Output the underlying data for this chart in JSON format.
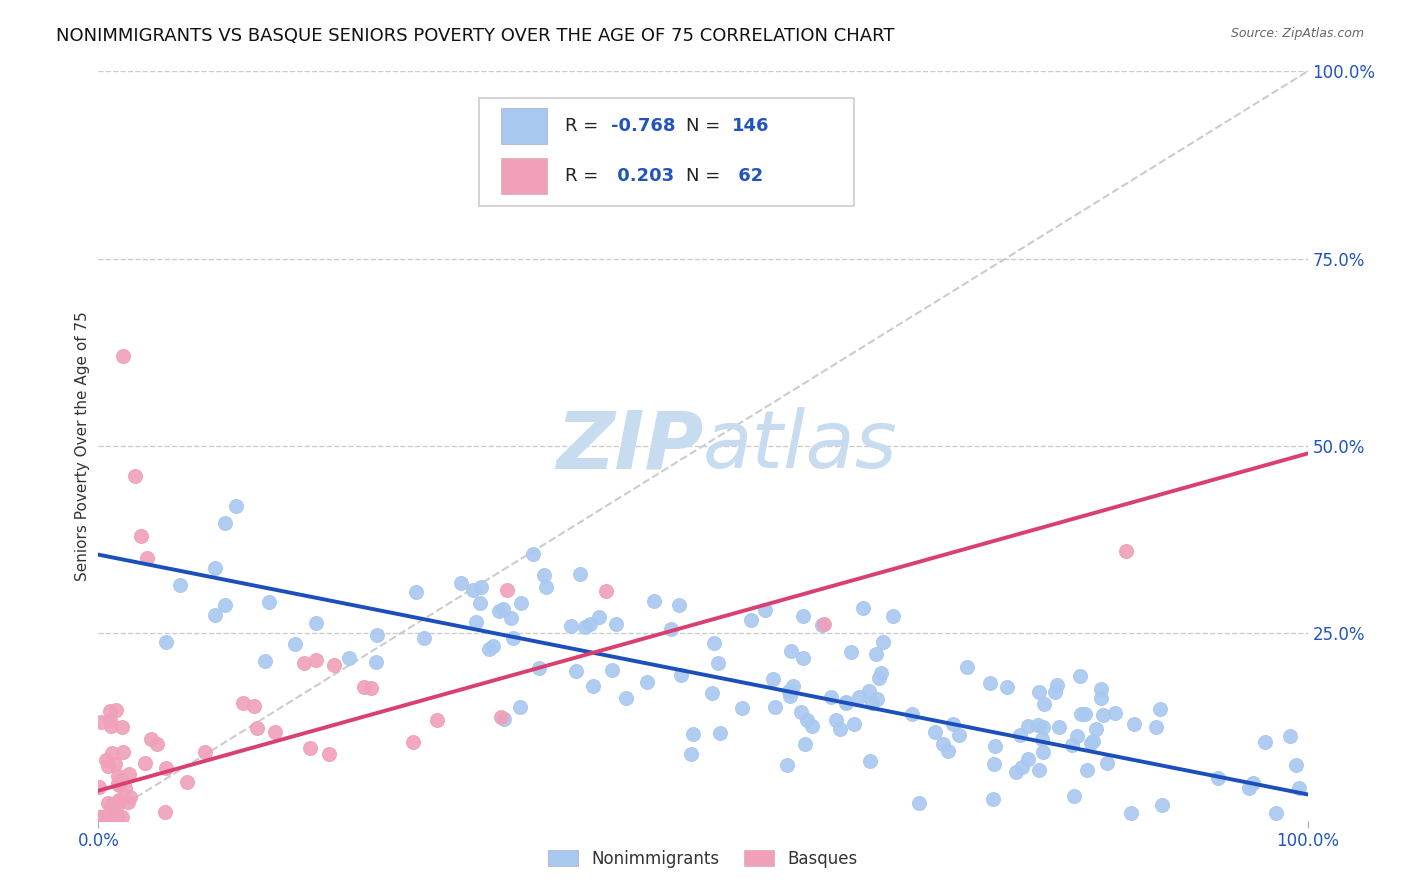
{
  "title": "NONIMMIGRANTS VS BASQUE SENIORS POVERTY OVER THE AGE OF 75 CORRELATION CHART",
  "source": "Source: ZipAtlas.com",
  "ylabel": "Seniors Poverty Over the Age of 75",
  "xlim": [
    0.0,
    1.0
  ],
  "ylim": [
    0.0,
    1.0
  ],
  "xticks": [
    0.0,
    1.0
  ],
  "xtick_labels": [
    "0.0%",
    "100.0%"
  ],
  "ytick_labels_right": [
    "25.0%",
    "50.0%",
    "75.0%",
    "100.0%"
  ],
  "yticks_right": [
    0.25,
    0.5,
    0.75,
    1.0
  ],
  "nonimmigrant_color": "#A8C8F0",
  "nonimmigrant_edge_color": "#A8C8F0",
  "basque_color": "#F0A0B8",
  "basque_edge_color": "#F0A0B8",
  "nonimmigrant_line_color": "#1B4FBB",
  "basque_line_color": "#D94070",
  "diag_line_color": "#CCCCCC",
  "watermark_color": "#C8DCF0",
  "background_color": "#FFFFFF",
  "title_fontsize": 13,
  "axis_label_fontsize": 11,
  "tick_fontsize": 12,
  "legend_fontsize": 13,
  "R_nonimmigrant": "-0.768",
  "N_nonimmigrant": "146",
  "R_basque": "0.203",
  "N_basque": "62",
  "ni_intercept": 0.355,
  "ni_slope": -0.32,
  "b_intercept": 0.04,
  "b_slope": 0.45,
  "ni_seed": 42,
  "b_seed": 99
}
